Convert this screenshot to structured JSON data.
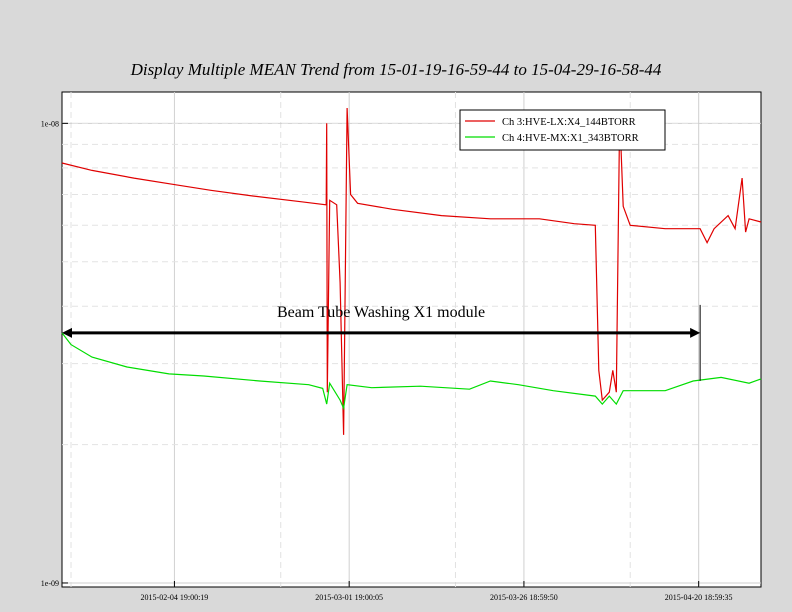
{
  "chart_data": {
    "type": "line",
    "title": "Display Multiple MEAN Trend from 15-01-19-16-59-44 to 15-04-29-16-58-44",
    "y_scale": "log",
    "y_ticks": [
      {
        "value": 1e-08,
        "label": "1e-08"
      },
      {
        "value": 1e-09,
        "label": "1e-09"
      }
    ],
    "ylim": [
      9.8e-10,
      1.17e-08
    ],
    "x_ticks": [
      {
        "value": "2015-02-04 19:00:19",
        "label": "2015-02-04 19:00:19"
      },
      {
        "value": "2015-03-01 19:00:05",
        "label": "2015-03-01 19:00:05"
      },
      {
        "value": "2015-03-26 18:59:50",
        "label": "2015-03-26 18:59:50"
      },
      {
        "value": "2015-04-20 18:59:35",
        "label": "2015-04-20 18:59:35"
      }
    ],
    "xlim": [
      "2015-01-19 16:59:44",
      "2015-04-29 16:58:44"
    ],
    "grid": true,
    "legend_position": "top-right",
    "series": [
      {
        "name": "Ch 3:HVE-LX:X4_144BTORR",
        "color": "#e00000",
        "points": [
          [
            "2015-01-19 17:00",
            8.2e-09
          ],
          [
            "2015-01-24 00:00",
            7.9e-09
          ],
          [
            "2015-01-30 00:00",
            7.6e-09
          ],
          [
            "2015-02-05 00:00",
            7.35e-09
          ],
          [
            "2015-02-10 00:00",
            7.15e-09
          ],
          [
            "2015-02-16 00:00",
            6.95e-09
          ],
          [
            "2015-02-23 00:00",
            6.75e-09
          ],
          [
            "2015-02-26 12:00",
            6.65e-09
          ],
          [
            "2015-02-26 14:00",
            1e-08
          ],
          [
            "2015-02-26 16:00",
            2.6e-09
          ],
          [
            "2015-02-27 00:00",
            6.8e-09
          ],
          [
            "2015-02-28 00:00",
            6.65e-09
          ],
          [
            "2015-02-28 12:00",
            4.5e-09
          ],
          [
            "2015-03-01 00:00",
            2.1e-09
          ],
          [
            "2015-03-01 12:00",
            1.08e-08
          ],
          [
            "2015-03-02 00:00",
            7e-09
          ],
          [
            "2015-03-03 00:00",
            6.7e-09
          ],
          [
            "2015-03-08 00:00",
            6.5e-09
          ],
          [
            "2015-03-15 00:00",
            6.3e-09
          ],
          [
            "2015-03-22 00:00",
            6.2e-09
          ],
          [
            "2015-03-29 00:00",
            6.2e-09
          ],
          [
            "2015-04-03 00:00",
            6.05e-09
          ],
          [
            "2015-04-06 00:00",
            6e-09
          ],
          [
            "2015-04-06 12:00",
            2.9e-09
          ],
          [
            "2015-04-07 00:00",
            2.5e-09
          ],
          [
            "2015-04-08 00:00",
            2.6e-09
          ],
          [
            "2015-04-08 12:00",
            2.9e-09
          ],
          [
            "2015-04-09 00:00",
            2.6e-09
          ],
          [
            "2015-04-09 12:00",
            1.05e-08
          ],
          [
            "2015-04-10 00:00",
            6.6e-09
          ],
          [
            "2015-04-11 00:00",
            6e-09
          ],
          [
            "2015-04-16 00:00",
            5.9e-09
          ],
          [
            "2015-04-21 00:00",
            5.9e-09
          ],
          [
            "2015-04-22 00:00",
            5.5e-09
          ],
          [
            "2015-04-23 00:00",
            5.9e-09
          ],
          [
            "2015-04-25 00:00",
            6.3e-09
          ],
          [
            "2015-04-26 00:00",
            5.9e-09
          ],
          [
            "2015-04-27 00:00",
            7.6e-09
          ],
          [
            "2015-04-27 12:00",
            5.8e-09
          ],
          [
            "2015-04-28 00:00",
            6.2e-09
          ],
          [
            "2015-04-29 16:58",
            6.1e-09
          ]
        ]
      },
      {
        "name": "Ch 4:HVE-MX:X1_343BTORR",
        "color": "#00dd00",
        "points": [
          [
            "2015-01-19 17:00",
            3.5e-09
          ],
          [
            "2015-01-21 00:00",
            3.3e-09
          ],
          [
            "2015-01-24 00:00",
            3.1e-09
          ],
          [
            "2015-01-29 00:00",
            2.95e-09
          ],
          [
            "2015-02-04 00:00",
            2.85e-09
          ],
          [
            "2015-02-09 00:00",
            2.82e-09
          ],
          [
            "2015-02-17 00:00",
            2.75e-09
          ],
          [
            "2015-02-24 00:00",
            2.7e-09
          ],
          [
            "2015-02-26 00:00",
            2.65e-09
          ],
          [
            "2015-02-26 14:00",
            2.45e-09
          ],
          [
            "2015-02-27 00:00",
            2.72e-09
          ],
          [
            "2015-02-28 12:00",
            2.5e-09
          ],
          [
            "2015-03-01 00:00",
            2.4e-09
          ],
          [
            "2015-03-01 12:00",
            2.7e-09
          ],
          [
            "2015-03-05 00:00",
            2.66e-09
          ],
          [
            "2015-03-12 00:00",
            2.68e-09
          ],
          [
            "2015-03-19 00:00",
            2.64e-09
          ],
          [
            "2015-03-22 00:00",
            2.75e-09
          ],
          [
            "2015-03-26 00:00",
            2.7e-09
          ],
          [
            "2015-03-31 00:00",
            2.62e-09
          ],
          [
            "2015-04-06 00:00",
            2.55e-09
          ],
          [
            "2015-04-07 00:00",
            2.45e-09
          ],
          [
            "2015-04-08 00:00",
            2.55e-09
          ],
          [
            "2015-04-09 00:00",
            2.45e-09
          ],
          [
            "2015-04-10 00:00",
            2.62e-09
          ],
          [
            "2015-04-16 00:00",
            2.62e-09
          ],
          [
            "2015-04-20 00:00",
            2.75e-09
          ],
          [
            "2015-04-24 00:00",
            2.8e-09
          ],
          [
            "2015-04-28 00:00",
            2.72e-09
          ],
          [
            "2015-04-29 16:58",
            2.78e-09
          ]
        ]
      }
    ],
    "annotation": {
      "text": "Beam Tube Washing X1 module",
      "from": "2015-01-19 17:00",
      "to": "2015-04-21 00:00",
      "value": 3.5e-09
    }
  }
}
